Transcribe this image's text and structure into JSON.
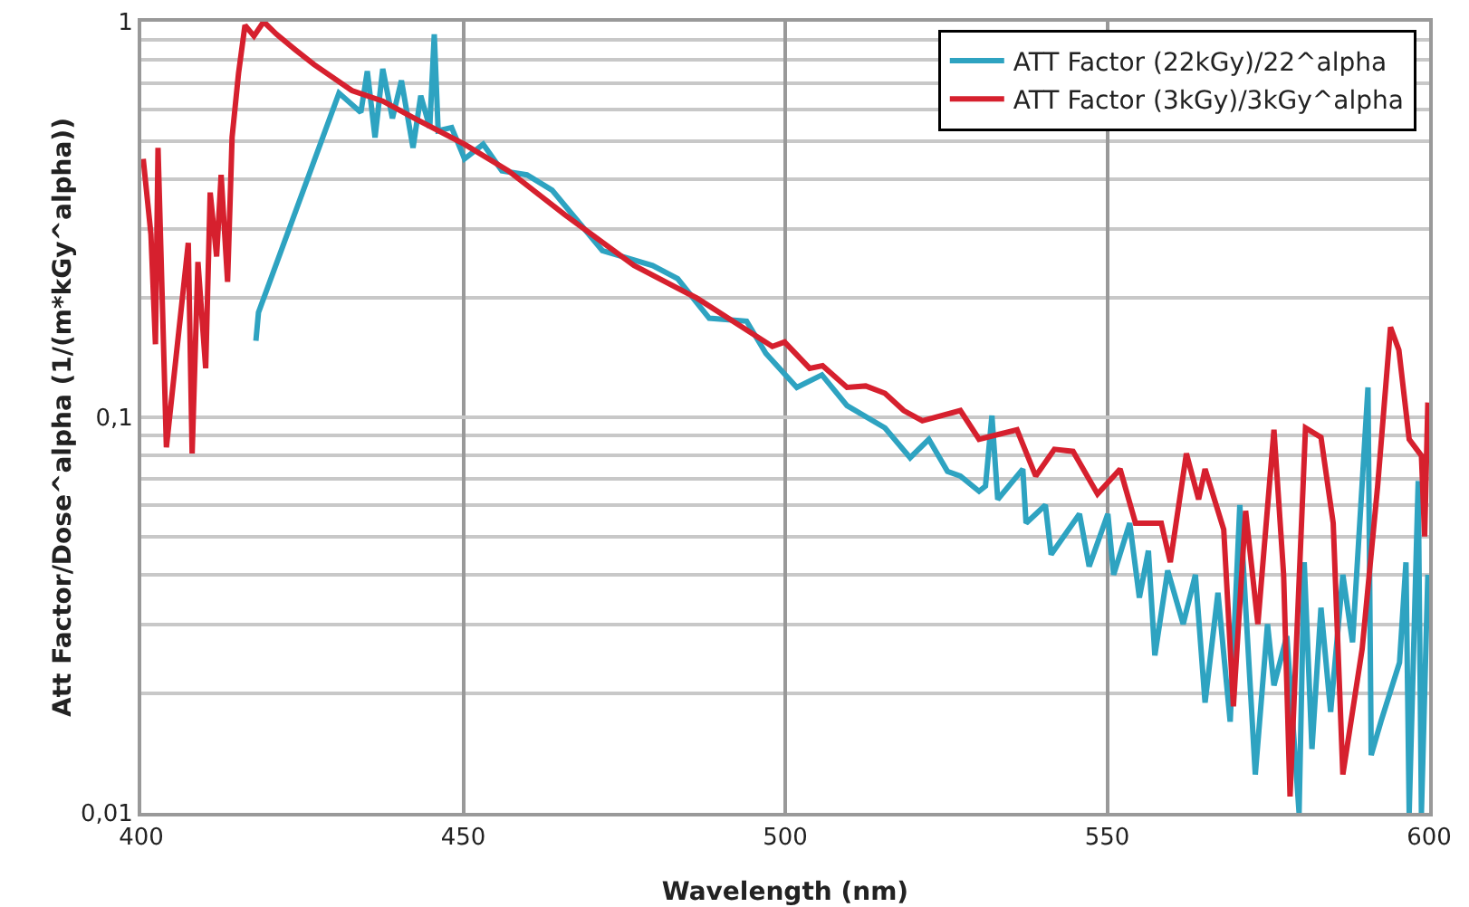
{
  "chart_data": {
    "type": "line",
    "xlabel": "Wavelength (nm)",
    "ylabel": "Att Factor/Dose^alpha (1/(m*kGy^alpha))",
    "log": "y",
    "grid": true,
    "legend": "top right",
    "marker": "none",
    "line_style": "solid",
    "xlim": [
      400,
      600
    ],
    "xticks": [
      400,
      450,
      500,
      550,
      600
    ],
    "ylim": [
      0.01,
      1
    ],
    "yticks": [
      {
        "value": 0.01,
        "label": "0,01"
      },
      {
        "value": 0.1,
        "label": "0,1"
      },
      1
    ],
    "series": [
      {
        "name": "ATT Factor (22kGy)/22^alpha",
        "color": "#2ea3c1",
        "x": [
          417.8,
          418.2,
          430.7,
          434.1,
          435.1,
          436.3,
          437.5,
          439,
          440.4,
          442.2,
          443.4,
          444.8,
          445.5,
          446.1,
          448.2,
          450.2,
          453.1,
          456,
          459.9,
          463.8,
          471.6,
          479.4,
          483.3,
          488.2,
          494,
          497,
          501.8,
          505.7,
          509.6,
          515.5,
          519.4,
          522.3,
          525.2,
          527.2,
          530.1,
          531.1,
          532.1,
          533,
          536.9,
          537.4,
          540.4,
          541.3,
          545.7,
          547.2,
          550.1,
          551,
          553.5,
          555,
          556.4,
          557.4,
          559.4,
          561.8,
          563.7,
          565.2,
          567.2,
          569.1,
          570.6,
          573,
          574.9,
          575.9,
          577.9,
          579.8,
          580.6,
          581.8,
          583.2,
          584.7,
          586.6,
          588.1,
          590.5,
          591,
          592.5,
          595.4,
          596.4,
          596.9,
          598.3,
          598.8,
          599.8
        ],
        "values": [
          0.156,
          0.184,
          0.66,
          0.59,
          0.75,
          0.51,
          0.76,
          0.57,
          0.71,
          0.48,
          0.65,
          0.54,
          0.93,
          0.53,
          0.54,
          0.45,
          0.49,
          0.42,
          0.41,
          0.375,
          0.264,
          0.242,
          0.224,
          0.178,
          0.175,
          0.145,
          0.119,
          0.128,
          0.107,
          0.094,
          0.079,
          0.088,
          0.073,
          0.071,
          0.065,
          0.067,
          0.101,
          0.062,
          0.074,
          0.054,
          0.06,
          0.045,
          0.057,
          0.042,
          0.057,
          0.04,
          0.054,
          0.035,
          0.046,
          0.025,
          0.041,
          0.03,
          0.04,
          0.019,
          0.036,
          0.017,
          0.06,
          0.0125,
          0.03,
          0.021,
          0.028,
          0.01,
          0.043,
          0.0145,
          0.033,
          0.018,
          0.04,
          0.027,
          0.119,
          0.014,
          0.017,
          0.024,
          0.043,
          0.01,
          0.069,
          0.01,
          0.04
        ]
      },
      {
        "name": "ATT Factor (3kGy)/3kGy^alpha",
        "color": "#d6202e",
        "x": [
          400.3,
          401.5,
          402.2,
          402.6,
          403.9,
          407.3,
          407.9,
          408.8,
          410,
          410.7,
          411.7,
          412.4,
          413.4,
          414.1,
          415.1,
          416.1,
          417.5,
          419,
          421,
          423.9,
          426.8,
          432.7,
          437.5,
          442.4,
          450.2,
          457,
          465.8,
          476.5,
          486.3,
          498,
          499.9,
          503.8,
          505.8,
          509.6,
          512.5,
          515.5,
          518.4,
          521.3,
          527.2,
          530.1,
          536,
          538.9,
          541.8,
          544.7,
          548.5,
          552,
          554.4,
          558.4,
          559.8,
          562.3,
          564.2,
          565.2,
          568.1,
          569.6,
          571.5,
          573.4,
          575.9,
          577.4,
          578.4,
          580.8,
          583.2,
          585.1,
          586.6,
          589.6,
          592,
          594,
          595.3,
          596.9,
          598.8,
          599.3,
          599.8
        ],
        "values": [
          0.45,
          0.29,
          0.153,
          0.48,
          0.084,
          0.276,
          0.081,
          0.247,
          0.133,
          0.37,
          0.255,
          0.41,
          0.22,
          0.51,
          0.74,
          0.98,
          0.92,
          1,
          0.93,
          0.85,
          0.78,
          0.67,
          0.63,
          0.57,
          0.49,
          0.42,
          0.325,
          0.242,
          0.2,
          0.151,
          0.155,
          0.133,
          0.135,
          0.119,
          0.12,
          0.115,
          0.104,
          0.098,
          0.104,
          0.088,
          0.093,
          0.071,
          0.083,
          0.082,
          0.064,
          0.074,
          0.054,
          0.054,
          0.043,
          0.081,
          0.062,
          0.074,
          0.052,
          0.0186,
          0.058,
          0.03,
          0.093,
          0.04,
          0.011,
          0.094,
          0.089,
          0.054,
          0.0125,
          0.026,
          0.067,
          0.169,
          0.148,
          0.088,
          0.08,
          0.05,
          0.109
        ]
      }
    ]
  }
}
